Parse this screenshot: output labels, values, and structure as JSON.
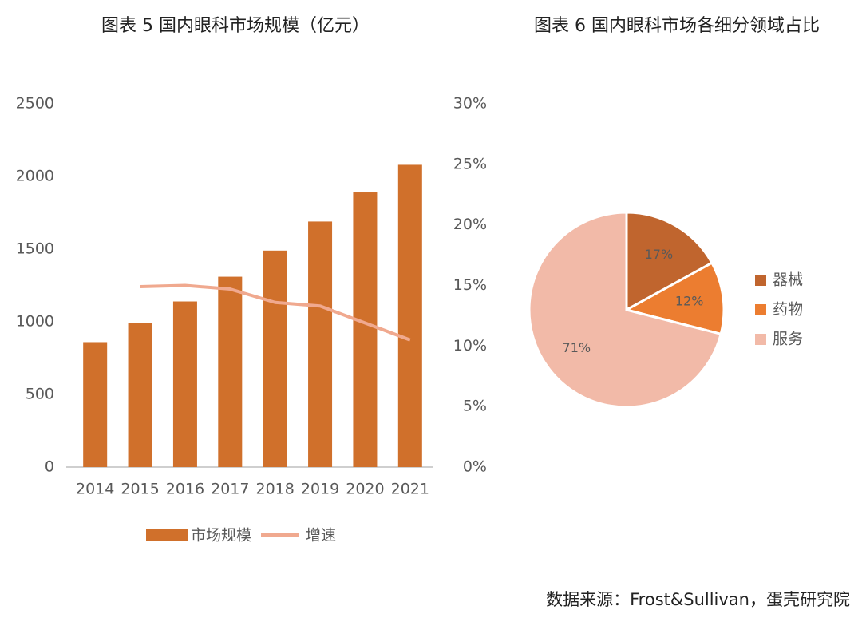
{
  "chart_data": [
    {
      "type": "bar",
      "title": "图表 5  国内眼科市场规模（亿元）",
      "categories": [
        "2014",
        "2015",
        "2016",
        "2017",
        "2018",
        "2019",
        "2020",
        "2021"
      ],
      "series": [
        {
          "name": "市场规模",
          "color": "#d0702b",
          "values": [
            860,
            990,
            1140,
            1310,
            1490,
            1690,
            1890,
            2080
          ]
        },
        {
          "name": "增速",
          "color": "#f0a98f",
          "type": "line",
          "axis": "y2",
          "values": [
            null,
            14.9,
            15.0,
            14.7,
            13.6,
            13.3,
            11.9,
            10.5
          ]
        }
      ],
      "ylim": [
        0,
        2500
      ],
      "yticks": [
        0,
        500,
        1000,
        1500,
        2000,
        2500
      ],
      "y2lim": [
        0,
        30
      ],
      "y2ticks": [
        {
          "value": 0,
          "label": "0%"
        },
        {
          "value": 5,
          "label": "5%"
        },
        {
          "value": 10,
          "label": "10%"
        },
        {
          "value": 15,
          "label": "15%"
        },
        {
          "value": 20,
          "label": "20%"
        },
        {
          "value": 25,
          "label": "25%"
        },
        {
          "value": 30,
          "label": "30%"
        }
      ],
      "grid": false,
      "legend": "bottom"
    },
    {
      "type": "pie",
      "title": "图表 6  国内眼科市场各细分领域占比",
      "categories": [
        "器械",
        "药物",
        "服务"
      ],
      "values": [
        17,
        12,
        71
      ],
      "value_labels": [
        "17%",
        "12%",
        "71%"
      ],
      "colors": [
        "#c0652e",
        "#ec7d30",
        "#f2baa8"
      ],
      "legend": "right"
    }
  ],
  "source": "数据来源：Frost&Sullivan，蛋壳研究院"
}
